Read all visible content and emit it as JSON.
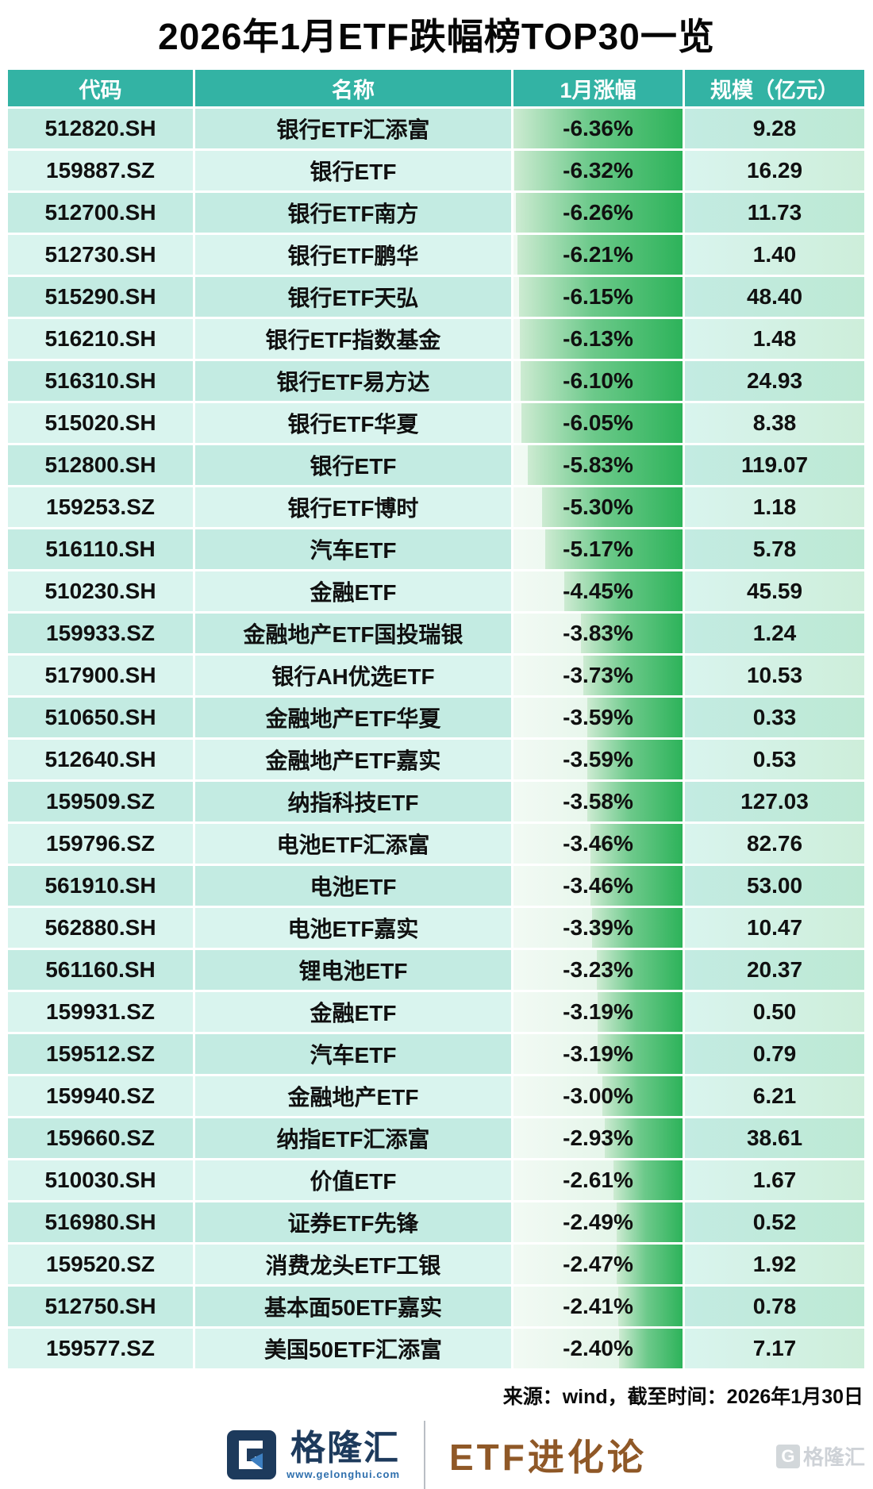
{
  "title": "2026年1月ETF跌幅榜TOP30一览",
  "chart_data": {
    "type": "table",
    "title": "2026年1月ETF跌幅榜TOP30一览",
    "columns": [
      "代码",
      "名称",
      "1月涨幅",
      "规模（亿元）"
    ],
    "bar_column": "1月涨幅",
    "bar_max_abs_pct": 6.36,
    "rows": [
      [
        "512820.SH",
        "银行ETF汇添富",
        "-6.36%",
        "9.28"
      ],
      [
        "159887.SZ",
        "银行ETF",
        "-6.32%",
        "16.29"
      ],
      [
        "512700.SH",
        "银行ETF南方",
        "-6.26%",
        "11.73"
      ],
      [
        "512730.SH",
        "银行ETF鹏华",
        "-6.21%",
        "1.40"
      ],
      [
        "515290.SH",
        "银行ETF天弘",
        "-6.15%",
        "48.40"
      ],
      [
        "516210.SH",
        "银行ETF指数基金",
        "-6.13%",
        "1.48"
      ],
      [
        "516310.SH",
        "银行ETF易方达",
        "-6.10%",
        "24.93"
      ],
      [
        "515020.SH",
        "银行ETF华夏",
        "-6.05%",
        "8.38"
      ],
      [
        "512800.SH",
        "银行ETF",
        "-5.83%",
        "119.07"
      ],
      [
        "159253.SZ",
        "银行ETF博时",
        "-5.30%",
        "1.18"
      ],
      [
        "516110.SH",
        "汽车ETF",
        "-5.17%",
        "5.78"
      ],
      [
        "510230.SH",
        "金融ETF",
        "-4.45%",
        "45.59"
      ],
      [
        "159933.SZ",
        "金融地产ETF国投瑞银",
        "-3.83%",
        "1.24"
      ],
      [
        "517900.SH",
        "银行AH优选ETF",
        "-3.73%",
        "10.53"
      ],
      [
        "510650.SH",
        "金融地产ETF华夏",
        "-3.59%",
        "0.33"
      ],
      [
        "512640.SH",
        "金融地产ETF嘉实",
        "-3.59%",
        "0.53"
      ],
      [
        "159509.SZ",
        "纳指科技ETF",
        "-3.58%",
        "127.03"
      ],
      [
        "159796.SZ",
        "电池ETF汇添富",
        "-3.46%",
        "82.76"
      ],
      [
        "561910.SH",
        "电池ETF",
        "-3.46%",
        "53.00"
      ],
      [
        "562880.SH",
        "电池ETF嘉实",
        "-3.39%",
        "10.47"
      ],
      [
        "561160.SH",
        "锂电池ETF",
        "-3.23%",
        "20.37"
      ],
      [
        "159931.SZ",
        "金融ETF",
        "-3.19%",
        "0.50"
      ],
      [
        "159512.SZ",
        "汽车ETF",
        "-3.19%",
        "0.79"
      ],
      [
        "159940.SZ",
        "金融地产ETF",
        "-3.00%",
        "6.21"
      ],
      [
        "159660.SZ",
        "纳指ETF汇添富",
        "-2.93%",
        "38.61"
      ],
      [
        "510030.SH",
        "价值ETF",
        "-2.61%",
        "1.67"
      ],
      [
        "516980.SH",
        "证券ETF先锋",
        "-2.49%",
        "0.52"
      ],
      [
        "159520.SZ",
        "消费龙头ETF工银",
        "-2.47%",
        "1.92"
      ],
      [
        "512750.SH",
        "基本面50ETF嘉实",
        "-2.41%",
        "0.78"
      ],
      [
        "159577.SZ",
        "美国50ETF汇添富",
        "-2.40%",
        "7.17"
      ]
    ]
  },
  "footer": {
    "source": "来源：wind，截至时间：2026年1月30日",
    "logo_name": "格隆汇",
    "logo_url": "www.gelonghui.com",
    "logo_letter": "G",
    "brand": "ETF进化论",
    "watermark_letter": "G",
    "watermark": "格隆汇"
  },
  "colors": {
    "header_teal": "#33b3a4",
    "row_odd": "#c3ebe2",
    "row_even": "#d9f4ee",
    "bar_green": "#2db35a",
    "brand_navy": "#1d3a5c",
    "brand_bronze": "#8f5827"
  }
}
